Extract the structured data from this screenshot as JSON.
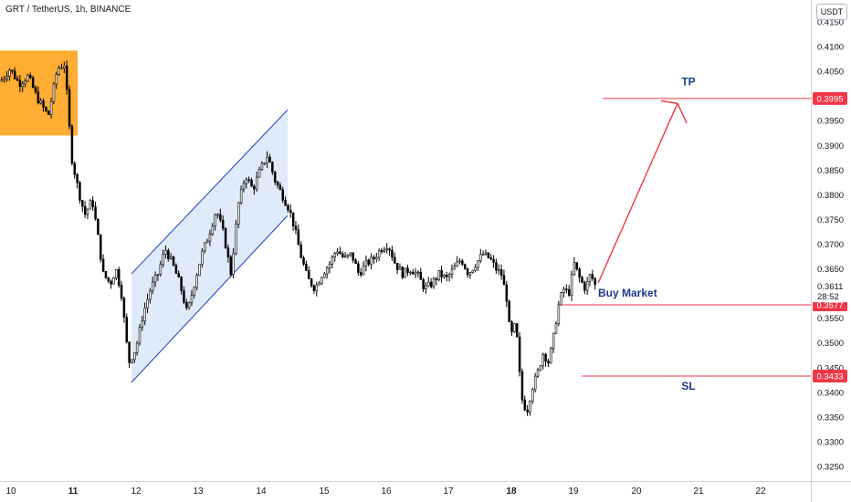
{
  "header": {
    "symbol_line": "GRT / TetherUS, 1h, BINANCE",
    "currency_button": "USDT"
  },
  "chart_data": {
    "type": "candlestick",
    "title": "GRT / TetherUS, 1h, BINANCE",
    "ylim": [
      0.322,
      0.4175
    ],
    "y_ticks": [
      "0.4150",
      "0.4100",
      "0.4050",
      "0.4000",
      "0.3950",
      "0.3900",
      "0.3850",
      "0.3800",
      "0.3750",
      "0.3700",
      "0.3650",
      "0.3600",
      "0.3550",
      "0.3500",
      "0.3450",
      "0.3400",
      "0.3350",
      "0.3300",
      "0.3250"
    ],
    "x_ticks": [
      {
        "label": "10",
        "bold": false
      },
      {
        "label": "11",
        "bold": true
      },
      {
        "label": "12",
        "bold": false
      },
      {
        "label": "13",
        "bold": false
      },
      {
        "label": "14",
        "bold": false
      },
      {
        "label": "15",
        "bold": false
      },
      {
        "label": "16",
        "bold": false
      },
      {
        "label": "17",
        "bold": false
      },
      {
        "label": "18",
        "bold": true
      },
      {
        "label": "19",
        "bold": false
      },
      {
        "label": "20",
        "bold": false
      },
      {
        "label": "21",
        "bold": false
      },
      {
        "label": "22",
        "bold": false
      }
    ],
    "price_path": [
      [
        0,
        0.403
      ],
      [
        10,
        0.4055
      ],
      [
        20,
        0.4025
      ],
      [
        30,
        0.404
      ],
      [
        40,
        0.3995
      ],
      [
        52,
        0.396
      ],
      [
        62,
        0.4055
      ],
      [
        70,
        0.4065
      ],
      [
        74,
        0.396
      ],
      [
        78,
        0.387
      ],
      [
        86,
        0.38
      ],
      [
        92,
        0.376
      ],
      [
        100,
        0.379
      ],
      [
        106,
        0.372
      ],
      [
        112,
        0.364
      ],
      [
        120,
        0.362
      ],
      [
        126,
        0.365
      ],
      [
        132,
        0.36
      ],
      [
        140,
        0.346
      ],
      [
        148,
        0.349
      ],
      [
        156,
        0.356
      ],
      [
        164,
        0.361
      ],
      [
        172,
        0.364
      ],
      [
        180,
        0.369
      ],
      [
        188,
        0.366
      ],
      [
        196,
        0.362
      ],
      [
        204,
        0.356
      ],
      [
        212,
        0.362
      ],
      [
        220,
        0.368
      ],
      [
        228,
        0.372
      ],
      [
        236,
        0.377
      ],
      [
        244,
        0.372
      ],
      [
        252,
        0.364
      ],
      [
        260,
        0.378
      ],
      [
        268,
        0.384
      ],
      [
        276,
        0.381
      ],
      [
        284,
        0.385
      ],
      [
        292,
        0.388
      ],
      [
        300,
        0.383
      ],
      [
        308,
        0.38
      ],
      [
        316,
        0.377
      ],
      [
        322,
        0.373
      ],
      [
        328,
        0.368
      ],
      [
        336,
        0.363
      ],
      [
        344,
        0.361
      ],
      [
        352,
        0.364
      ],
      [
        360,
        0.366
      ],
      [
        368,
        0.369
      ],
      [
        376,
        0.367
      ],
      [
        384,
        0.368
      ],
      [
        392,
        0.364
      ],
      [
        400,
        0.366
      ],
      [
        408,
        0.367
      ],
      [
        416,
        0.369
      ],
      [
        424,
        0.37
      ],
      [
        432,
        0.366
      ],
      [
        440,
        0.364
      ],
      [
        448,
        0.365
      ],
      [
        456,
        0.364
      ],
      [
        464,
        0.361
      ],
      [
        472,
        0.362
      ],
      [
        480,
        0.364
      ],
      [
        488,
        0.363
      ],
      [
        496,
        0.365
      ],
      [
        504,
        0.367
      ],
      [
        512,
        0.364
      ],
      [
        520,
        0.366
      ],
      [
        528,
        0.368
      ],
      [
        536,
        0.367
      ],
      [
        542,
        0.365
      ],
      [
        548,
        0.364
      ],
      [
        554,
        0.359
      ],
      [
        558,
        0.351
      ],
      [
        564,
        0.354
      ],
      [
        570,
        0.339
      ],
      [
        576,
        0.336
      ],
      [
        582,
        0.341
      ],
      [
        588,
        0.344
      ],
      [
        594,
        0.348
      ],
      [
        600,
        0.346
      ],
      [
        606,
        0.352
      ],
      [
        610,
        0.357
      ],
      [
        616,
        0.361
      ],
      [
        622,
        0.36
      ],
      [
        628,
        0.366
      ],
      [
        634,
        0.363
      ],
      [
        640,
        0.361
      ],
      [
        646,
        0.364
      ],
      [
        652,
        0.3611
      ]
    ],
    "annotations": {
      "tp_label": "TP",
      "sl_label": "SL",
      "entry_label": "Buy Market",
      "tp_price": 0.3995,
      "entry_price": 0.3577,
      "sl_price": 0.3433,
      "tp_tag": "0.3995",
      "entry_tag": "0.3577",
      "sl_tag": "0.3433",
      "last_price_tag": "0.3611",
      "countdown": "28:52"
    },
    "colors": {
      "candle": "#000000",
      "highlight_box": "#ff9800",
      "channel_line": "#1e3fbf",
      "channel_fill": "#c5d9f7",
      "level_line": "#f23645",
      "tag_bg": "#f23645",
      "arrow": "#f23645",
      "label_text": "#1e3a8a",
      "axis_text": "#131722",
      "grid": "#ffffff"
    }
  }
}
